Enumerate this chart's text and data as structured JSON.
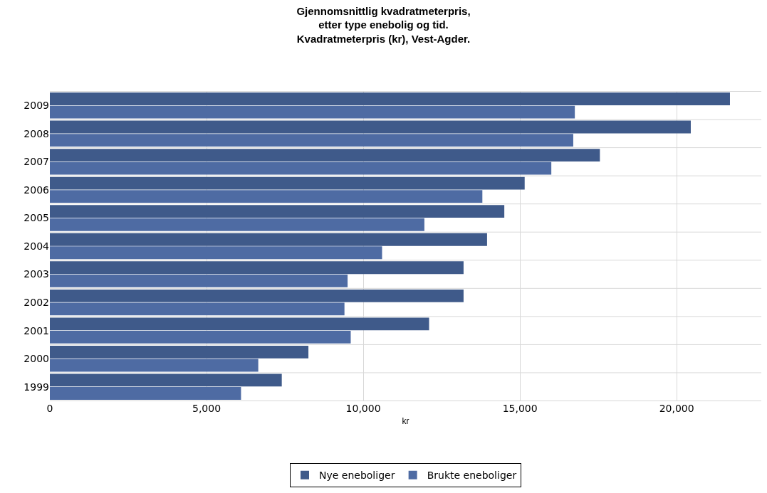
{
  "chart_data": {
    "type": "bar",
    "orientation": "horizontal",
    "title": "Gjennomsnittlig kvadratmeterpris,\netter type enebolig og tid.\nKvadratmeterpris (kr), Vest-Agder.",
    "xlabel": "kr",
    "categories": [
      "2009",
      "2008",
      "2007",
      "2006",
      "2005",
      "2004",
      "2003",
      "2002",
      "2001",
      "2000",
      "1999"
    ],
    "series": [
      {
        "name": "Nye eneboliger",
        "color": "#3f5a8a",
        "values": [
          21700,
          20450,
          17550,
          15150,
          14500,
          13950,
          13200,
          13200,
          12100,
          8250,
          7400
        ]
      },
      {
        "name": "Brukte eneboliger",
        "color": "#4e6ba3",
        "values": [
          16750,
          16700,
          16000,
          13800,
          11950,
          10600,
          9500,
          9400,
          9600,
          6650,
          6100
        ]
      }
    ],
    "xlim": [
      0,
      22700
    ],
    "xticks": [
      0,
      {
        "value": 5000,
        "label": "5,000"
      },
      {
        "value": 10000,
        "label": "10,000"
      },
      {
        "value": 15000,
        "label": "15,000"
      },
      {
        "value": 20000,
        "label": "20,000"
      }
    ],
    "grid": true,
    "legend": "bottom"
  }
}
